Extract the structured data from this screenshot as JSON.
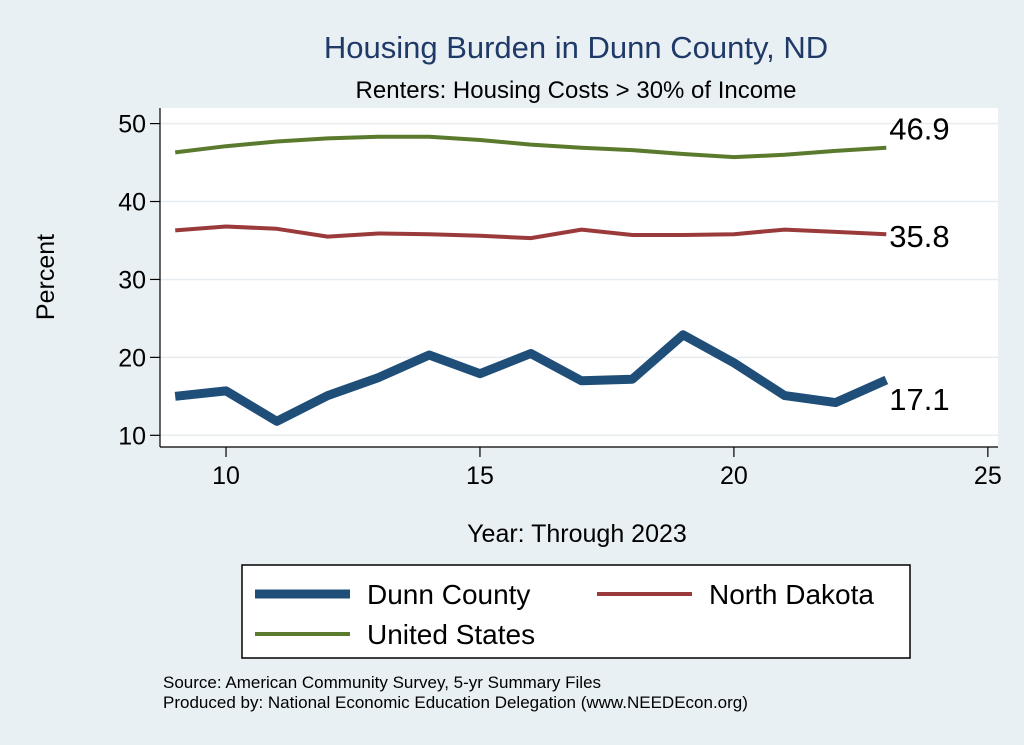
{
  "chart_data": {
    "type": "line",
    "title": "Housing Burden in Dunn County, ND",
    "subtitle": "Renters: Housing Costs > 30% of Income",
    "xlabel": "Year: Through 2023",
    "ylabel": "Percent",
    "xlim": [
      8.7,
      25.2
    ],
    "ylim": [
      8.5,
      52
    ],
    "xticks": [
      10,
      15,
      20,
      25
    ],
    "yticks": [
      10,
      20,
      30,
      40,
      50
    ],
    "grid": true,
    "legend_position": "bottom",
    "x": [
      9,
      10,
      11,
      12,
      13,
      14,
      15,
      16,
      17,
      18,
      19,
      20,
      21,
      22,
      23
    ],
    "series": [
      {
        "name": "Dunn County",
        "color": "#1f4e79",
        "values": [
          15.0,
          15.7,
          11.8,
          15.1,
          17.4,
          20.3,
          17.9,
          20.5,
          17.0,
          17.2,
          22.9,
          19.3,
          15.1,
          14.2,
          17.1
        ],
        "end_label": "17.1"
      },
      {
        "name": "North Dakota",
        "color": "#9b3a3a",
        "values": [
          36.3,
          36.8,
          36.5,
          35.5,
          35.9,
          35.8,
          35.6,
          35.3,
          36.4,
          35.7,
          35.7,
          35.8,
          36.4,
          36.1,
          35.8
        ],
        "end_label": "35.8"
      },
      {
        "name": "United States",
        "color": "#5a7a2e",
        "values": [
          46.3,
          47.1,
          47.7,
          48.1,
          48.3,
          48.3,
          47.9,
          47.3,
          46.9,
          46.6,
          46.1,
          45.7,
          46.0,
          46.5,
          46.9
        ],
        "end_label": "46.9"
      }
    ],
    "notes": [
      "Source: American Community Survey, 5-yr Summary Files",
      "Produced by: National Economic Education Delegation (www.NEEDEcon.org)"
    ]
  }
}
